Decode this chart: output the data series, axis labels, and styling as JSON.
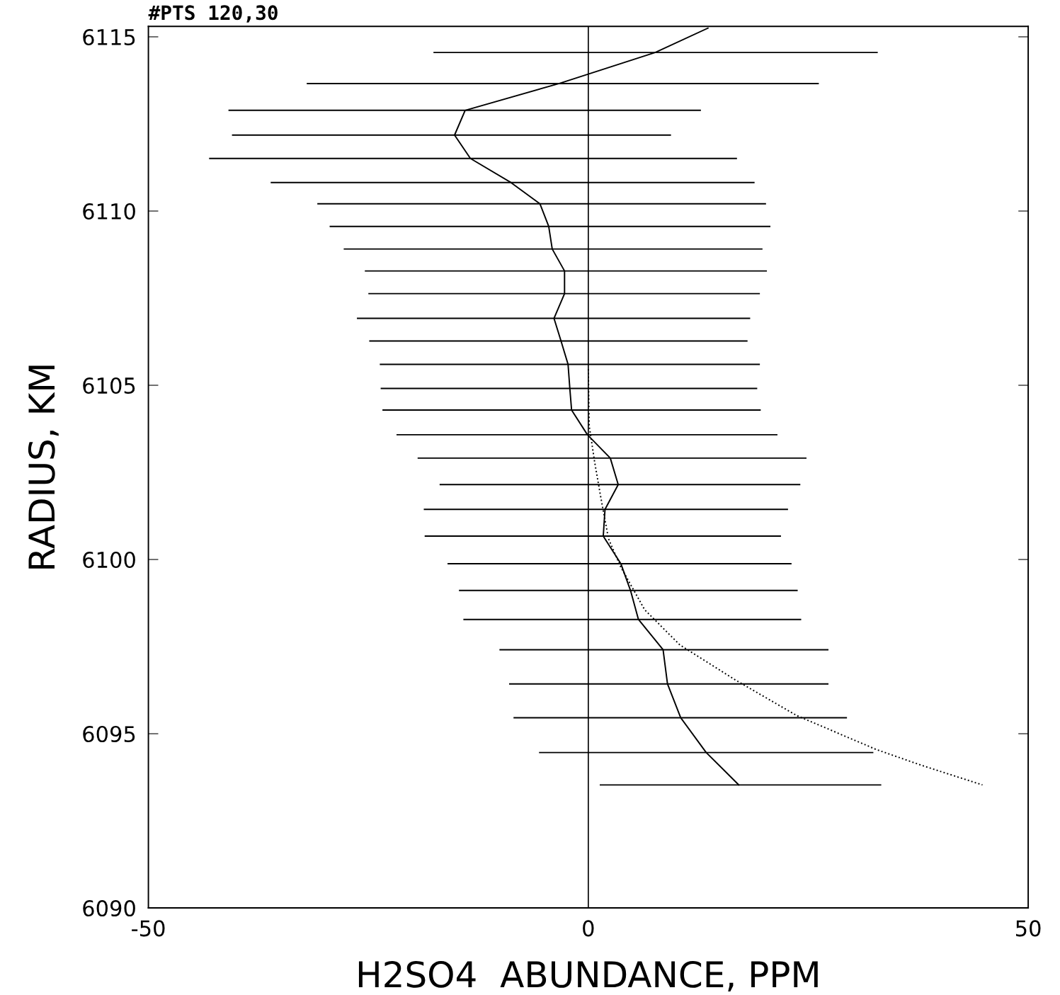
{
  "chart_data": {
    "type": "line",
    "xlabel": "H2SO4  ABUNDANCE, PPM",
    "ylabel": "RADIUS, KM",
    "annotations": [
      "#PTS 120,30"
    ],
    "xlim": [
      -50,
      50
    ],
    "xticks": [
      -50,
      0,
      50
    ],
    "ylim": [
      6090,
      6115.3
    ],
    "yticks": [
      6090,
      6095,
      6100,
      6105,
      6110,
      6115
    ],
    "grid": false,
    "legend": false,
    "marker": "none",
    "ref_lines": [
      {
        "axis": "x",
        "value": 0,
        "color": "#000000"
      }
    ],
    "series": [
      {
        "color": "#000000",
        "line_style": "solid",
        "x": [
          13.6,
          7.6,
          -3.3,
          -14.0,
          -15.2,
          -13.4,
          -8.8,
          -5.5,
          -4.5,
          -4.1,
          -2.7,
          -2.7,
          -3.9,
          -3.1,
          -2.3,
          -2.1,
          -1.9,
          -0.1,
          2.5,
          3.4,
          1.9,
          1.7,
          3.7,
          4.8,
          5.7,
          8.5,
          9.0,
          10.5,
          13.4,
          17.1
        ],
        "values": [
          6115.25,
          6114.55,
          6113.66,
          6112.89,
          6112.18,
          6111.51,
          6110.82,
          6110.21,
          6109.56,
          6108.91,
          6108.28,
          6107.63,
          6106.92,
          6106.27,
          6105.6,
          6104.91,
          6104.29,
          6103.58,
          6102.91,
          6102.15,
          6101.44,
          6100.67,
          6099.88,
          6099.11,
          6098.28,
          6097.41,
          6096.43,
          6095.46,
          6094.46,
          6093.53
        ],
        "xerrors": [
          null,
          [
            -17.6,
            32.9
          ],
          [
            -32.0,
            26.2
          ],
          [
            -40.9,
            12.8
          ],
          [
            -40.5,
            9.4
          ],
          [
            -43.1,
            16.9
          ],
          [
            -36.1,
            18.9
          ],
          [
            -30.8,
            20.2
          ],
          [
            -29.4,
            20.7
          ],
          [
            -27.8,
            19.8
          ],
          [
            -25.4,
            20.3
          ],
          [
            -25.0,
            19.5
          ],
          [
            -26.3,
            18.4
          ],
          [
            -24.9,
            18.1
          ],
          [
            -23.7,
            19.5
          ],
          [
            -23.6,
            19.2
          ],
          [
            -23.4,
            19.6
          ],
          [
            -21.8,
            21.5
          ],
          [
            -19.4,
            24.8
          ],
          [
            -16.9,
            24.1
          ],
          [
            -18.7,
            22.7
          ],
          [
            -18.6,
            21.9
          ],
          [
            -16.0,
            23.1
          ],
          [
            -14.7,
            23.8
          ],
          [
            -14.2,
            24.2
          ],
          [
            -10.1,
            27.3
          ],
          [
            -9.0,
            27.3
          ],
          [
            -8.5,
            29.4
          ],
          [
            -5.6,
            32.4
          ],
          [
            1.3,
            33.3
          ]
        ]
      },
      {
        "color": "#000000",
        "line_style": "dotted",
        "x": [
          0.0,
          0.1,
          0.7,
          1.4,
          2.3,
          3.7,
          6.4,
          10.4,
          16.8,
          23.7,
          32.7,
          37.8,
          44.8
        ],
        "values": [
          6105.46,
          6103.84,
          6102.83,
          6101.81,
          6100.59,
          6099.78,
          6098.56,
          6097.55,
          6096.53,
          6095.52,
          6094.55,
          6094.1,
          6093.53
        ]
      }
    ]
  }
}
